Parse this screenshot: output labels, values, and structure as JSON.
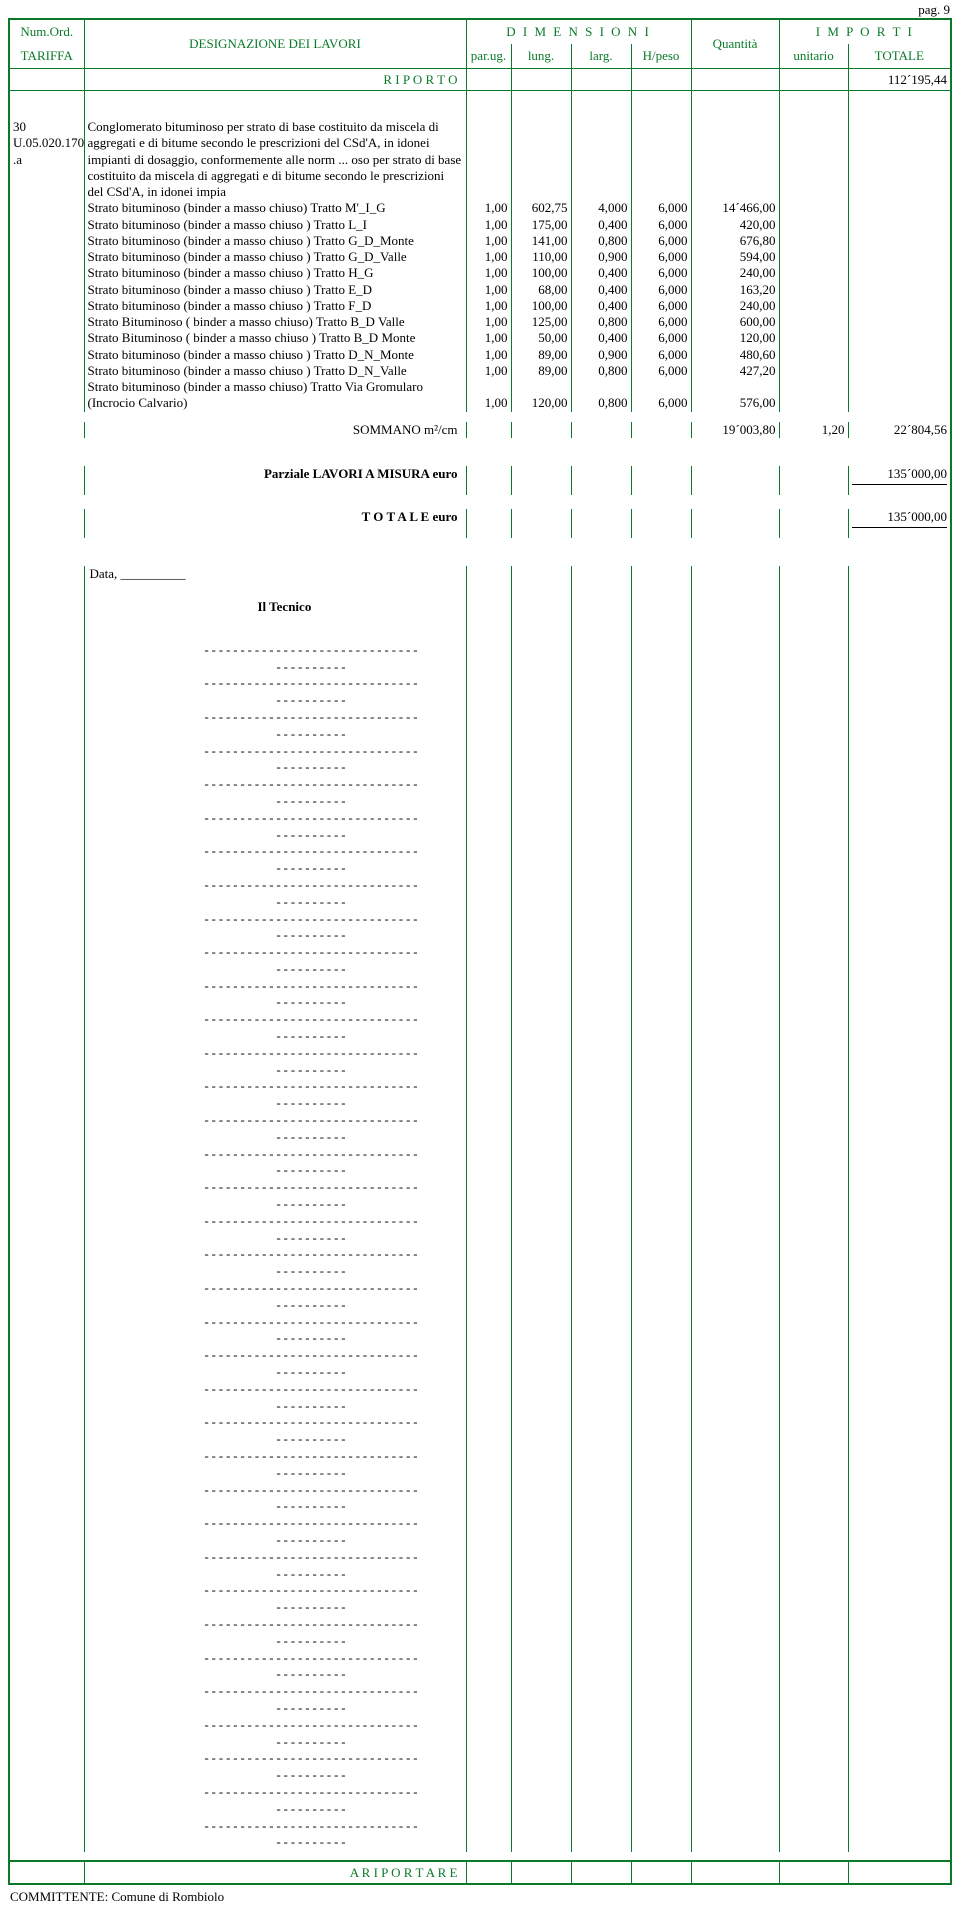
{
  "page_number": "pag. 9",
  "header": {
    "tariffa_l1": "Num.Ord.",
    "tariffa_l2": "TARIFFA",
    "designazione": "DESIGNAZIONE DEI LAVORI",
    "dimensioni": "D I M E N S I O N I",
    "parug": "par.ug.",
    "lung": "lung.",
    "larg": "larg.",
    "hpeso": "H/peso",
    "quantita": "Quantità",
    "importi": "I M P O R T I",
    "unitario": "unitario",
    "totale": "TOTALE"
  },
  "riporto": {
    "label": "R I P O R T O",
    "totale": "112´195,44"
  },
  "item": {
    "code_l1": "30",
    "code_l2": "U.05.020.170",
    "code_l3": ".a",
    "intro": "Conglomerato bituminoso per strato di base costituito da miscela di aggregati e di bitume secondo le prescrizioni del CSd'A, in idonei impianti di dosaggio, conformemente alle norm ... oso per strato di base costituito da miscela di aggregati e di bitume secondo le prescrizioni del CSd'A, in idonei impia",
    "rows": [
      {
        "d": "Strato bituminoso (binder a masso chiuso) Tratto M'_I_G",
        "pu": "1,00",
        "lu": "602,75",
        "la": "4,000",
        "h": "6,000",
        "q": "14´466,00"
      },
      {
        "d": "Strato bituminoso (binder a masso chiuso ) Tratto L_I",
        "pu": "1,00",
        "lu": "175,00",
        "la": "0,400",
        "h": "6,000",
        "q": "420,00"
      },
      {
        "d": "Strato bituminoso (binder a masso chiuso ) Tratto G_D_Monte",
        "pu": "1,00",
        "lu": "141,00",
        "la": "0,800",
        "h": "6,000",
        "q": "676,80"
      },
      {
        "d": "Strato bituminoso (binder a masso chiuso ) Tratto G_D_Valle",
        "pu": "1,00",
        "lu": "110,00",
        "la": "0,900",
        "h": "6,000",
        "q": "594,00"
      },
      {
        "d": "Strato bituminoso (binder a masso chiuso ) Tratto H_G",
        "pu": "1,00",
        "lu": "100,00",
        "la": "0,400",
        "h": "6,000",
        "q": "240,00"
      },
      {
        "d": "Strato bituminoso (binder a masso chiuso ) Tratto E_D",
        "pu": "1,00",
        "lu": "68,00",
        "la": "0,400",
        "h": "6,000",
        "q": "163,20"
      },
      {
        "d": "Strato bituminoso (binder a masso chiuso ) Tratto F_D",
        "pu": "1,00",
        "lu": "100,00",
        "la": "0,400",
        "h": "6,000",
        "q": "240,00"
      },
      {
        "d": "Strato Bituminoso ( binder a masso chiuso) Tratto B_D Valle",
        "pu": "1,00",
        "lu": "125,00",
        "la": "0,800",
        "h": "6,000",
        "q": "600,00"
      },
      {
        "d": "Strato Bituminoso ( binder a masso chiuso ) Tratto B_D Monte",
        "pu": "1,00",
        "lu": "50,00",
        "la": "0,400",
        "h": "6,000",
        "q": "120,00"
      },
      {
        "d": "Strato bituminoso (binder a masso chiuso ) Tratto D_N_Monte",
        "pu": "1,00",
        "lu": "89,00",
        "la": "0,900",
        "h": "6,000",
        "q": "480,60"
      },
      {
        "d": "Strato bituminoso (binder a masso chiuso ) Tratto D_N_Valle",
        "pu": "1,00",
        "lu": "89,00",
        "la": "0,800",
        "h": "6,000",
        "q": "427,20"
      },
      {
        "d": "Strato bituminoso (binder a masso chiuso) Tratto Via Gromularo (Incrocio Calvario)",
        "pu": "1,00",
        "lu": "120,00",
        "la": "0,800",
        "h": "6,000",
        "q": "576,00"
      }
    ],
    "sommano_label": "SOMMANO m²/cm",
    "sommano_q": "19´003,80",
    "sommano_unit": "1,20",
    "sommano_tot": "22´804,56"
  },
  "parziale": {
    "label": "Parziale LAVORI A MISURA euro",
    "value": "135´000,00"
  },
  "totale_final": {
    "label": "T O T A L E   euro",
    "value": "135´000,00"
  },
  "signoff": {
    "data": "Data, __________",
    "tecnico": "Il Tecnico",
    "dashline": "----------------------------------------",
    "dash_count": 36
  },
  "footer": {
    "riportare": "A   R I P O R T A R E"
  },
  "committente": "COMMITTENTE: Comune di Rombiolo"
}
